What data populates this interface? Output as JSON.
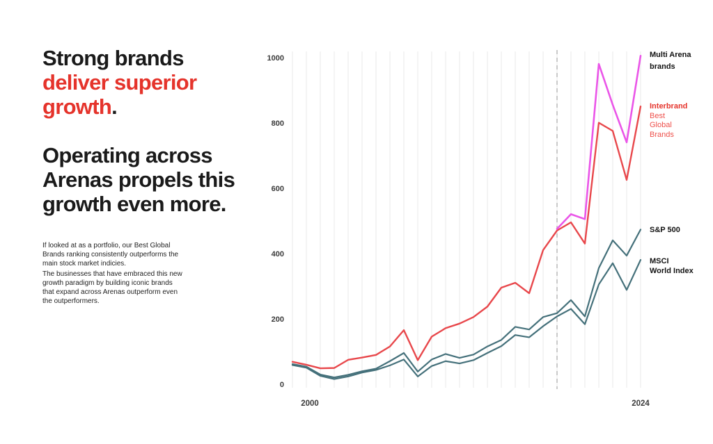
{
  "left_panel": {
    "headline": {
      "line1": "Strong brands",
      "line2": "deliver superior",
      "line3": "growth",
      "line3_period": ".",
      "accent_color": "#e5332b",
      "text_color": "#1a1a1a"
    },
    "subheadline": {
      "line1": "Operating across",
      "line2": "Arenas propels this",
      "line3": "growth even more."
    },
    "paragraph1": "If looked at as a portfolio, our Best Global Brands ranking consistently outperforms the main stock market indicies.",
    "paragraph2": "The businesses that have embraced this new growth paradigm by building iconic brands that expand across Arenas outperform even the outperformers."
  },
  "chart_data": {
    "type": "line",
    "title": "",
    "xlabel": "",
    "ylabel": "",
    "x_axis": {
      "range": [
        1999,
        2024
      ],
      "tick_labels": [
        "2000",
        "2024"
      ],
      "gridlines": "vertical, one per year, light gray"
    },
    "y_axis": {
      "range": [
        0,
        1000
      ],
      "ticks": [
        0,
        200,
        400,
        600,
        800,
        1000
      ],
      "gridlines": "none"
    },
    "reference_line": {
      "year": 2018,
      "style": "dashed",
      "color": "#b3b3b3"
    },
    "gridline_color": "#eaeaea",
    "legend_position": "right, direct line labels",
    "series": [
      {
        "name": "Multi Arena brands",
        "color": "#ea55e8",
        "label_lines": [
          "Multi Arena",
          "brands"
        ],
        "years": [
          2018,
          2019,
          2020,
          2021,
          2022,
          2023,
          2024
        ],
        "values": [
          480,
          525,
          510,
          985,
          860,
          745,
          1010
        ]
      },
      {
        "name": "Interbrand Best Global Brands",
        "color": "#e8474b",
        "label_lines": [
          "Interbrand",
          "Best",
          "Global",
          "Brands"
        ],
        "years": [
          1999,
          2000,
          2001,
          2002,
          2003,
          2004,
          2005,
          2006,
          2007,
          2008,
          2009,
          2010,
          2011,
          2012,
          2013,
          2014,
          2015,
          2016,
          2017,
          2018,
          2019,
          2020,
          2021,
          2022,
          2023,
          2024
        ],
        "values": [
          73,
          64,
          53,
          54,
          79,
          86,
          94,
          120,
          170,
          78,
          150,
          176,
          190,
          210,
          242,
          300,
          315,
          283,
          415,
          475,
          500,
          435,
          805,
          780,
          630,
          855
        ]
      },
      {
        "name": "S&P 500",
        "color": "#44707a",
        "label_lines": [
          "S&P 500"
        ],
        "years": [
          1999,
          2000,
          2001,
          2002,
          2003,
          2004,
          2005,
          2006,
          2007,
          2008,
          2009,
          2010,
          2011,
          2012,
          2013,
          2014,
          2015,
          2016,
          2017,
          2018,
          2019,
          2020,
          2021,
          2022,
          2023,
          2024
        ],
        "values": [
          66,
          58,
          34,
          25,
          33,
          44,
          52,
          75,
          100,
          43,
          80,
          97,
          85,
          95,
          120,
          140,
          180,
          172,
          210,
          222,
          262,
          212,
          360,
          445,
          398,
          478
        ]
      },
      {
        "name": "MSCI World Index",
        "color": "#44707a",
        "label_lines": [
          "MSCI",
          "World Index"
        ],
        "years": [
          1999,
          2000,
          2001,
          2002,
          2003,
          2004,
          2005,
          2006,
          2007,
          2008,
          2009,
          2010,
          2011,
          2012,
          2013,
          2014,
          2015,
          2016,
          2017,
          2018,
          2019,
          2020,
          2021,
          2022,
          2023,
          2024
        ],
        "values": [
          63,
          55,
          30,
          20,
          28,
          40,
          48,
          62,
          80,
          28,
          60,
          75,
          68,
          78,
          100,
          121,
          155,
          148,
          182,
          212,
          235,
          188,
          310,
          375,
          293,
          385
        ]
      }
    ]
  }
}
